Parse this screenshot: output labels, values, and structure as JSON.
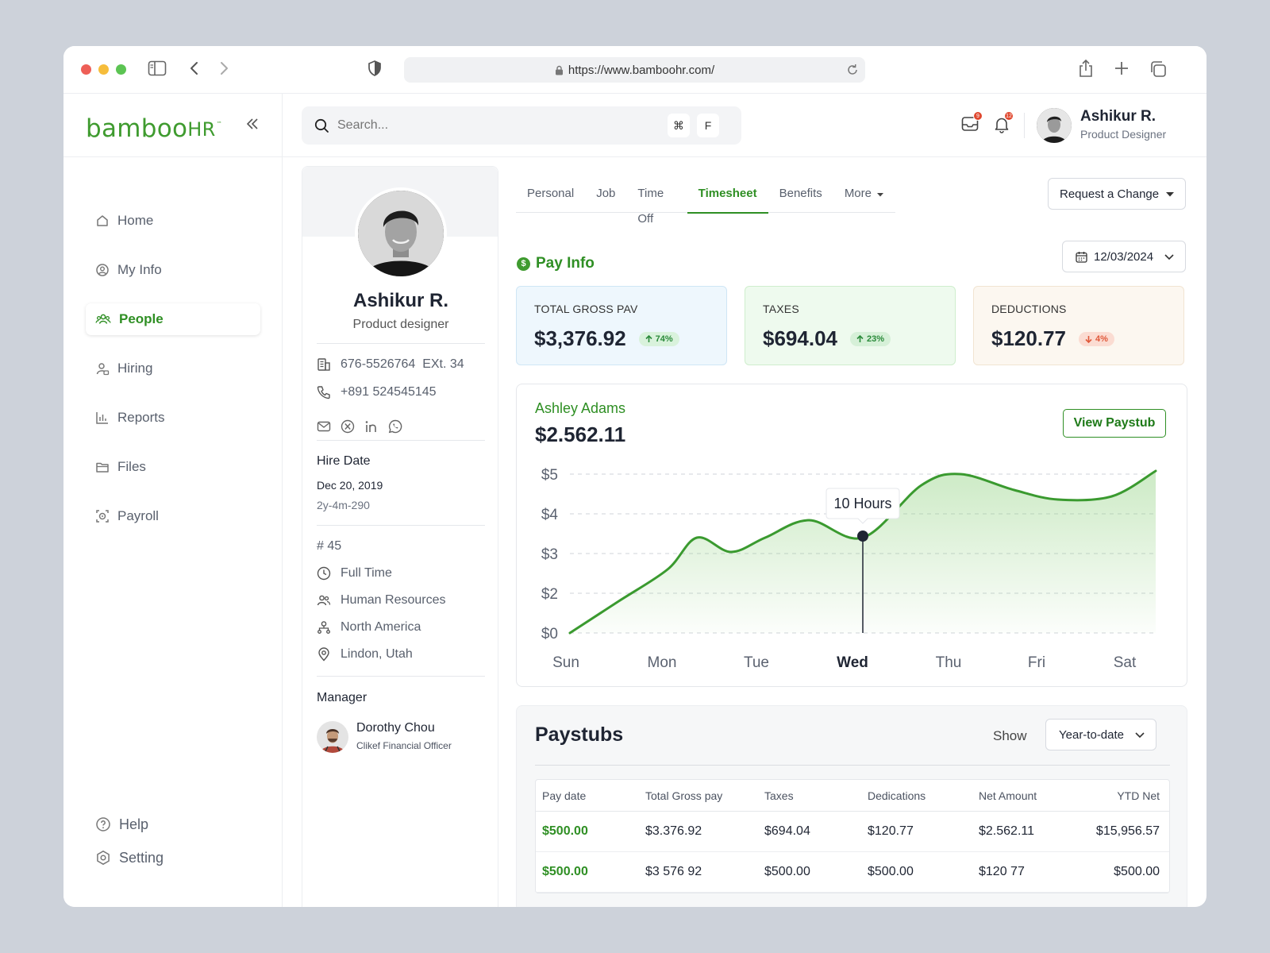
{
  "browser": {
    "url": "https://www.bamboohr.com/"
  },
  "brand": {
    "name": "bamboo",
    "suffix": "HR",
    "tm": "™",
    "accent": "#3f9b2f"
  },
  "sidebar": {
    "items": [
      {
        "label": "Home",
        "icon": "home-icon"
      },
      {
        "label": "My Info",
        "icon": "user-circle-icon"
      },
      {
        "label": "People",
        "icon": "people-icon",
        "active": true
      },
      {
        "label": "Hiring",
        "icon": "hiring-icon"
      },
      {
        "label": "Reports",
        "icon": "reports-icon"
      },
      {
        "label": "Files",
        "icon": "folder-icon"
      },
      {
        "label": "Payroll",
        "icon": "payroll-icon"
      }
    ],
    "bottom": [
      {
        "label": "Help",
        "icon": "help-icon"
      },
      {
        "label": "Setting",
        "icon": "settings-icon"
      }
    ]
  },
  "topbar": {
    "search_placeholder": "Search...",
    "shortcut_1": "⌘",
    "shortcut_2": "F",
    "inbox_badge": "9",
    "notif_badge": "12",
    "user_name": "Ashikur R.",
    "user_role": "Product Designer"
  },
  "profile": {
    "name": "Ashikur R.",
    "role": "Product designer",
    "phone_work": "676-5526764  EXt. 34",
    "phone_mobile": "+891 524545145",
    "hire_date_label": "Hire Date",
    "hire_date": "Dec 20, 2019",
    "tenure": "2y-4m-290",
    "employee_no": "# 45",
    "employment_type": "Full Time",
    "department": "Human Resources",
    "region": "North America",
    "location": "Lindon, Utah",
    "manager_label": "Manager",
    "manager_name": "Dorothy Chou",
    "manager_title": "Clikef Financial Officer"
  },
  "tabs": [
    {
      "label": "Personal"
    },
    {
      "label": "Job"
    },
    {
      "label": "Time Off"
    },
    {
      "label": "Timesheet",
      "active": true
    },
    {
      "label": "Benefits"
    },
    {
      "label": "More"
    }
  ],
  "request_change_label": "Request a Change",
  "pay_info": {
    "title": "Pay Info",
    "date": "12/03/2024",
    "stats": [
      {
        "label": "TOTAL GROSS PAV",
        "value": "$3,376.92",
        "change": "74%",
        "direction": "up",
        "bg": "#eef7fd",
        "border": "#cfe6f5"
      },
      {
        "label": "TAXES",
        "value": "$694.04",
        "change": "23%",
        "direction": "up",
        "bg": "#eefaee",
        "border": "#cfeecd"
      },
      {
        "label": "DEDUCTIONS",
        "value": "$120.77",
        "change": "4%",
        "direction": "down",
        "bg": "#fcf7f0",
        "border": "#f1e4d2"
      }
    ]
  },
  "employee_chart": {
    "name": "Ashley Adams",
    "amount": "$2.562.11",
    "button": "View Paystub",
    "tooltip": "10 Hours"
  },
  "chart_data": {
    "type": "area",
    "categories": [
      "Sun",
      "Mon",
      "Tue",
      "Wed",
      "Thu",
      "Fri",
      "Sat"
    ],
    "x": [
      0,
      0.5,
      1,
      1.3,
      1.65,
      2,
      2.45,
      3,
      3.6,
      4,
      4.55,
      5,
      5.55,
      6
    ],
    "y": [
      0,
      1,
      2,
      3,
      2.55,
      3,
      3.55,
      3,
      4.65,
      5,
      4.5,
      4.2,
      4.3,
      5.1
    ],
    "highlight": {
      "category": "Wed",
      "y": 3.05
    },
    "yticks": [
      "$0",
      "$2",
      "$3",
      "$4",
      "$5"
    ],
    "ylim": [
      0,
      5
    ],
    "grid": true,
    "color": "#3a9a2f"
  },
  "paystubs": {
    "title": "Paystubs",
    "show_label": "Show",
    "filter": "Year-to-date",
    "columns": [
      "Pay date",
      "Total Gross pay",
      "Taxes",
      "Dedications",
      "Net Amount",
      "YTD Net"
    ],
    "rows": [
      [
        "$500.00",
        "$3.376.92",
        "$694.04",
        "$120.77",
        "$2.562.11",
        "$15,956.57"
      ],
      [
        "$500.00",
        "$3 576 92",
        "$500.00",
        "$500.00",
        "$120 77",
        "$500.00"
      ]
    ]
  }
}
